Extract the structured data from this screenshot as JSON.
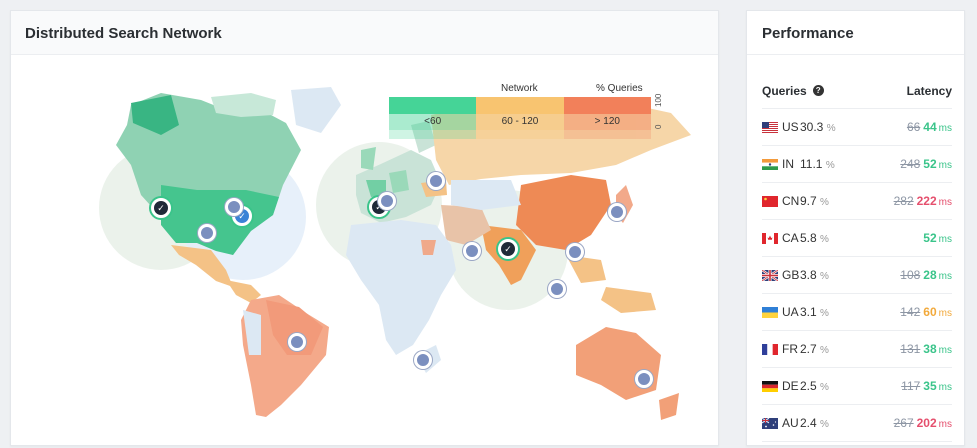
{
  "map_panel": {
    "title": "Distributed Search Network"
  },
  "legend": {
    "network_label": "Network",
    "queries_label": "% Queries",
    "buckets": [
      "<60",
      "60 - 120",
      "> 120"
    ],
    "colors": [
      "#45d497",
      "#f8c470",
      "#f2805a"
    ],
    "axis": [
      "100",
      "0"
    ]
  },
  "performance": {
    "title": "Performance",
    "col_queries": "Queries",
    "col_latency": "Latency",
    "help_glyph": "?",
    "rows": [
      {
        "cc": "US",
        "flag": "us",
        "pct": "30.3",
        "pct_unit": "%",
        "old": "66",
        "new": "44",
        "unit": "ms",
        "status": "green"
      },
      {
        "cc": "IN",
        "flag": "in",
        "pct": "11.1",
        "pct_unit": "%",
        "old": "248",
        "new": "52",
        "unit": "ms",
        "status": "green"
      },
      {
        "cc": "CN",
        "flag": "cn",
        "pct": "9.7",
        "pct_unit": "%",
        "old": "282",
        "new": "222",
        "unit": "ms",
        "status": "red"
      },
      {
        "cc": "CA",
        "flag": "ca",
        "pct": "5.8",
        "pct_unit": "%",
        "old": "",
        "new": "52",
        "unit": "ms",
        "status": "green"
      },
      {
        "cc": "GB",
        "flag": "gb",
        "pct": "3.8",
        "pct_unit": "%",
        "old": "108",
        "new": "28",
        "unit": "ms",
        "status": "green"
      },
      {
        "cc": "UA",
        "flag": "ua",
        "pct": "3.1",
        "pct_unit": "%",
        "old": "142",
        "new": "60",
        "unit": "ms",
        "status": "orange"
      },
      {
        "cc": "FR",
        "flag": "fr",
        "pct": "2.7",
        "pct_unit": "%",
        "old": "131",
        "new": "38",
        "unit": "ms",
        "status": "green"
      },
      {
        "cc": "DE",
        "flag": "de",
        "pct": "2.5",
        "pct_unit": "%",
        "old": "117",
        "new": "35",
        "unit": "ms",
        "status": "green"
      },
      {
        "cc": "AU",
        "flag": "au",
        "pct": "2.4",
        "pct_unit": "%",
        "old": "267",
        "new": "202",
        "unit": "ms",
        "status": "red"
      }
    ]
  }
}
